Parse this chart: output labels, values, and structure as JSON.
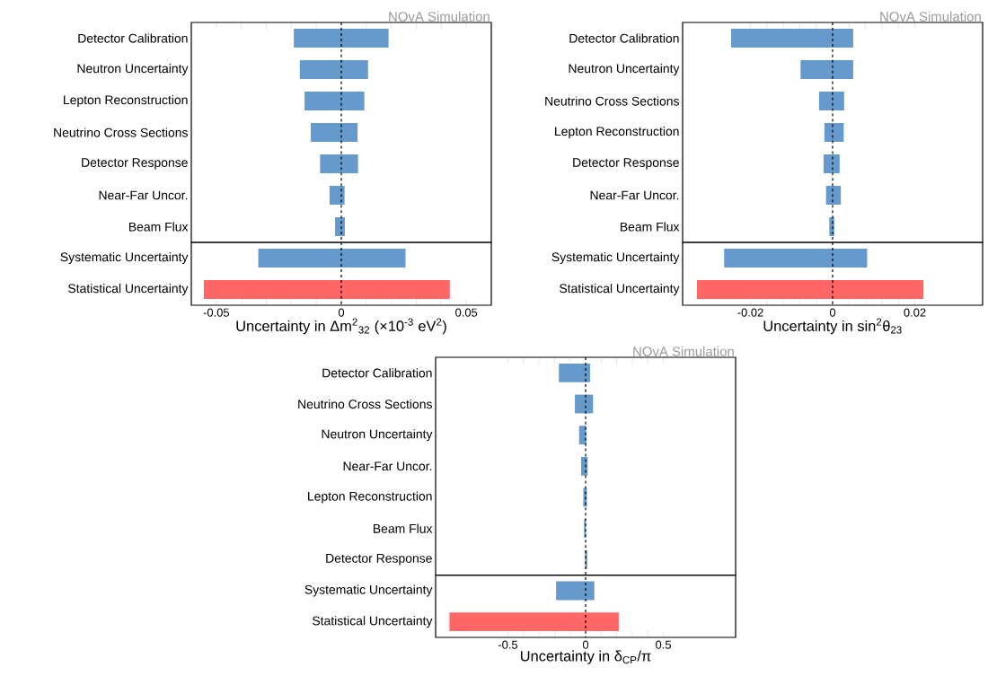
{
  "chart_data": [
    {
      "type": "bar",
      "orientation": "horizontal",
      "xlabel": "Uncertainty in Δm$^{2}$$_{32}$ (×10$^{-3}$ eV$^{2}$)",
      "annotations": [
        "NOvA Simulation"
      ],
      "categories": [
        "Detector Calibration",
        "Neutron Uncertainty",
        "Lepton Reconstruction",
        "Neutrino Cross Sections",
        "Detector Response",
        "Near-Far Uncor.",
        "Beam Flux",
        "Systematic Uncertainty",
        "Statistical Uncertainty"
      ],
      "base": [
        -0.019,
        -0.0166,
        -0.0147,
        -0.0122,
        -0.0085,
        -0.0047,
        -0.0025,
        -0.0332,
        -0.055
      ],
      "values": [
        0.0379,
        0.0273,
        0.0239,
        0.0187,
        0.0152,
        0.006,
        0.0039,
        0.0589,
        0.0984
      ],
      "colors": [
        "#6699cc",
        "#6699cc",
        "#6699cc",
        "#6699cc",
        "#6699cc",
        "#6699cc",
        "#6699cc",
        "#6699cc",
        "#ff6666"
      ],
      "xlim": [
        -0.06,
        0.06
      ],
      "xticks": [
        -0.05,
        0,
        0.05
      ],
      "ref_lines": [
        {
          "axis": "x",
          "value": 0,
          "line_style": "dashed"
        }
      ]
    },
    {
      "type": "bar",
      "orientation": "horizontal",
      "xlabel": "Uncertainty in sin$^{2}$θ$_{23}$",
      "annotations": [
        "NOvA Simulation"
      ],
      "categories": [
        "Detector Calibration",
        "Neutron Uncertainty",
        "Neutrino Cross Sections",
        "Lepton Reconstruction",
        "Detector Response",
        "Near-Far Uncor.",
        "Beam Flux",
        "Systematic Uncertainty",
        "Statistical Uncertainty"
      ],
      "base": [
        -0.0247,
        -0.0078,
        -0.0033,
        -0.002,
        -0.0022,
        -0.0016,
        -0.0008,
        -0.0264,
        -0.033
      ],
      "values": [
        0.0297,
        0.0128,
        0.0061,
        0.0047,
        0.0039,
        0.0036,
        0.0012,
        0.0348,
        0.0551
      ],
      "colors": [
        "#6699cc",
        "#6699cc",
        "#6699cc",
        "#6699cc",
        "#6699cc",
        "#6699cc",
        "#6699cc",
        "#6699cc",
        "#ff6666"
      ],
      "xlim": [
        -0.0365,
        0.0365
      ],
      "xticks": [
        -0.02,
        0,
        0.02
      ],
      "ref_lines": [
        {
          "axis": "x",
          "value": 0,
          "line_style": "dashed"
        }
      ]
    },
    {
      "type": "bar",
      "orientation": "horizontal",
      "xlabel": "Uncertainty in δ$_{CP}$/π",
      "annotations": [
        "NOvA Simulation"
      ],
      "categories": [
        "Detector Calibration",
        "Neutrino Cross Sections",
        "Neutron Uncertainty",
        "Near-Far Uncor.",
        "Lepton Reconstruction",
        "Beam Flux",
        "Detector Response",
        "Systematic Uncertainty",
        "Statistical Uncertainty"
      ],
      "base": [
        -0.172,
        -0.069,
        -0.042,
        -0.029,
        -0.015,
        -0.01,
        -0.004,
        -0.19,
        -0.876
      ],
      "values": [
        0.201,
        0.117,
        0.046,
        0.042,
        0.023,
        0.012,
        0.014,
        0.246,
        1.089
      ],
      "colors": [
        "#6699cc",
        "#6699cc",
        "#6699cc",
        "#6699cc",
        "#6699cc",
        "#6699cc",
        "#6699cc",
        "#6699cc",
        "#ff6666"
      ],
      "xlim": [
        -0.965,
        0.965
      ],
      "xticks": [
        -0.5,
        0,
        0.5
      ],
      "ref_lines": [
        {
          "axis": "x",
          "value": 0,
          "line_style": "dashed"
        }
      ]
    }
  ]
}
